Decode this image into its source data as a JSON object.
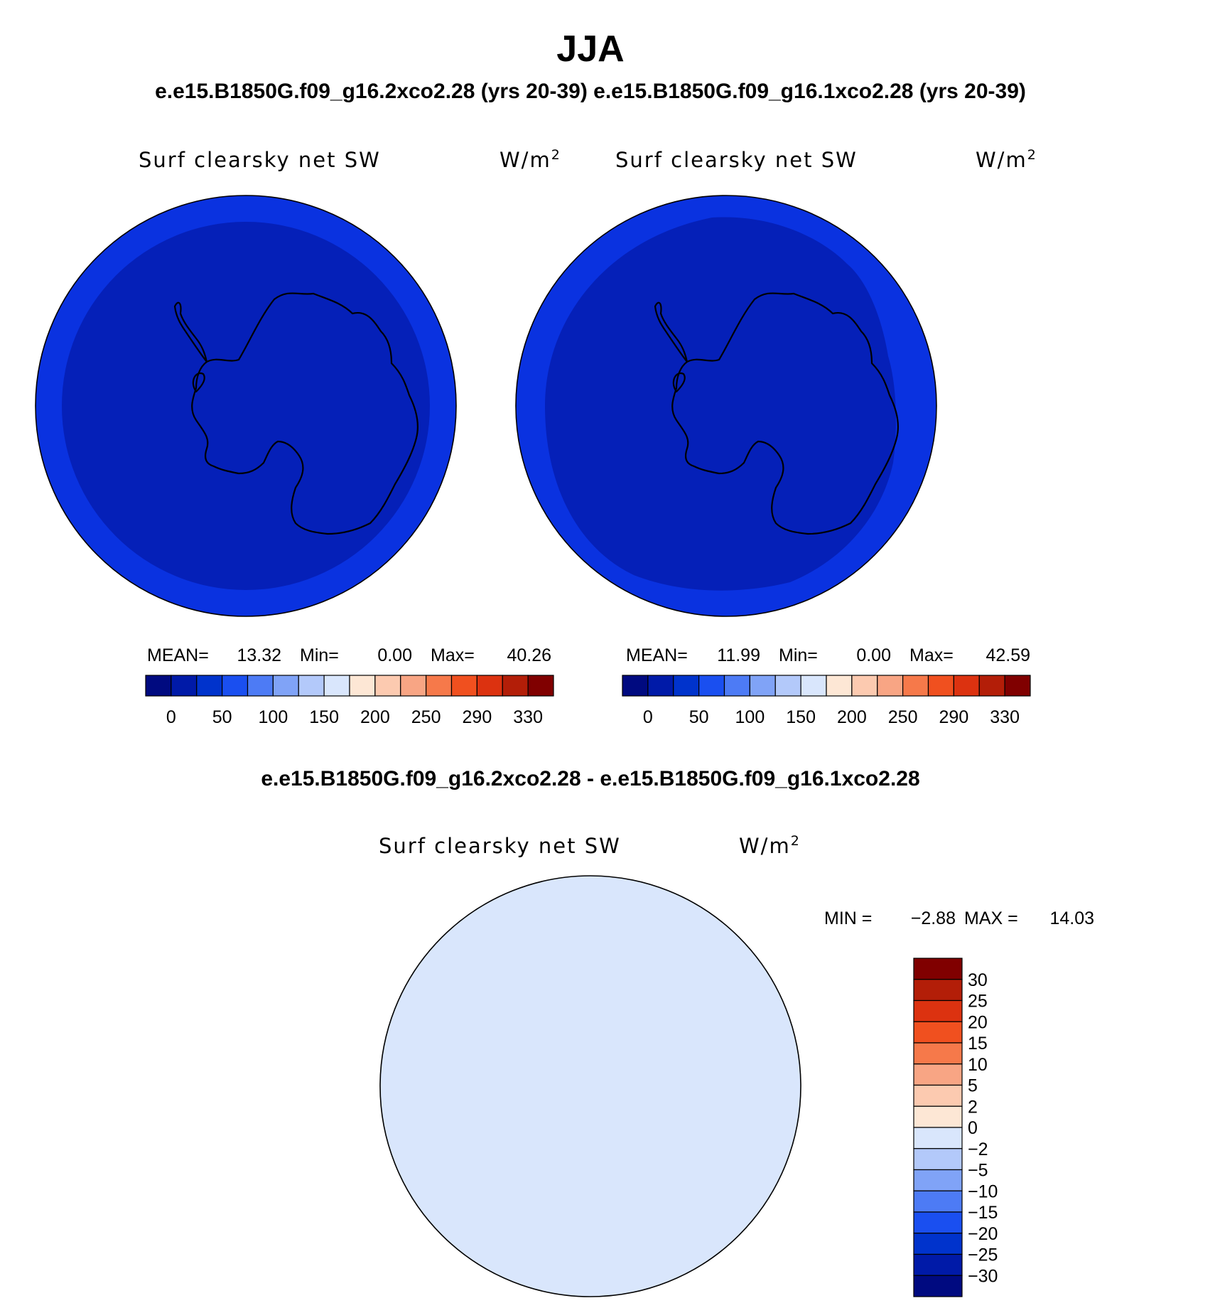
{
  "main_title": "JJA",
  "subtitle": "e.e15.B1850G.f09_g16.2xco2.28 (yrs 20-39) e.e15.B1850G.f09_g16.1xco2.28 (yrs 20-39)",
  "diff_title": "e.e15.B1850G.f09_g16.2xco2.28 - e.e15.B1850G.f09_g16.1xco2.28",
  "panels": [
    {
      "variable": "Surf clearsky net SW",
      "units_base": "W/m",
      "units_sup": "2",
      "stats": {
        "mean_label": "MEAN=",
        "mean": "13.32",
        "min_label": "Min=",
        "min": "0.00",
        "max_label": "Max=",
        "max": "40.26"
      }
    },
    {
      "variable": "Surf clearsky net SW",
      "units_base": "W/m",
      "units_sup": "2",
      "stats": {
        "mean_label": "MEAN=",
        "mean": "11.99",
        "min_label": "Min=",
        "min": "0.00",
        "max_label": "Max=",
        "max": "42.59"
      }
    }
  ],
  "diff_panel": {
    "variable": "Surf clearsky net SW",
    "units_base": "W/m",
    "units_sup": "2",
    "min_label": "MIN =",
    "min": "−2.88",
    "max_label": "MAX =",
    "max": "14.03"
  },
  "colorbar_main": {
    "colors": [
      "#000a80",
      "#001aa8",
      "#0033cc",
      "#1a4ff0",
      "#4d7bf5",
      "#80a3f7",
      "#b3c9fa",
      "#d9e6fc",
      "#fde7d5",
      "#fccab0",
      "#f8a584",
      "#f6794a",
      "#f0501f",
      "#dc3210",
      "#b31e08",
      "#800000"
    ],
    "labels": [
      "0",
      "50",
      "100",
      "150",
      "200",
      "250",
      "290",
      "330"
    ]
  },
  "colorbar_diff": {
    "colors": [
      "#000a80",
      "#001aa8",
      "#0033cc",
      "#1a4ff0",
      "#4d7bf5",
      "#80a3f7",
      "#b3c9fa",
      "#d9e6fc",
      "#fde7d5",
      "#fccab0",
      "#f8a584",
      "#f6794a",
      "#f0501f",
      "#dc3210",
      "#b31e08",
      "#800000"
    ],
    "labels": [
      "30",
      "25",
      "20",
      "15",
      "10",
      "5",
      "2",
      "0",
      "−2",
      "−5",
      "−10",
      "−15",
      "−20",
      "−25",
      "−30"
    ]
  },
  "map_colors": {
    "outer_ring": "#0a32e0",
    "inner_disk": "#0520b8",
    "diff_base": "#d9e6fc",
    "diff_blue_ring": "#b3c9fa",
    "diff_weak_pos": "#fde7d5",
    "diff_pos": "#fccab0",
    "diff_mid_pos": "#f8a584",
    "diff_strong_pos": "#f6794a",
    "coast": "#000000"
  }
}
